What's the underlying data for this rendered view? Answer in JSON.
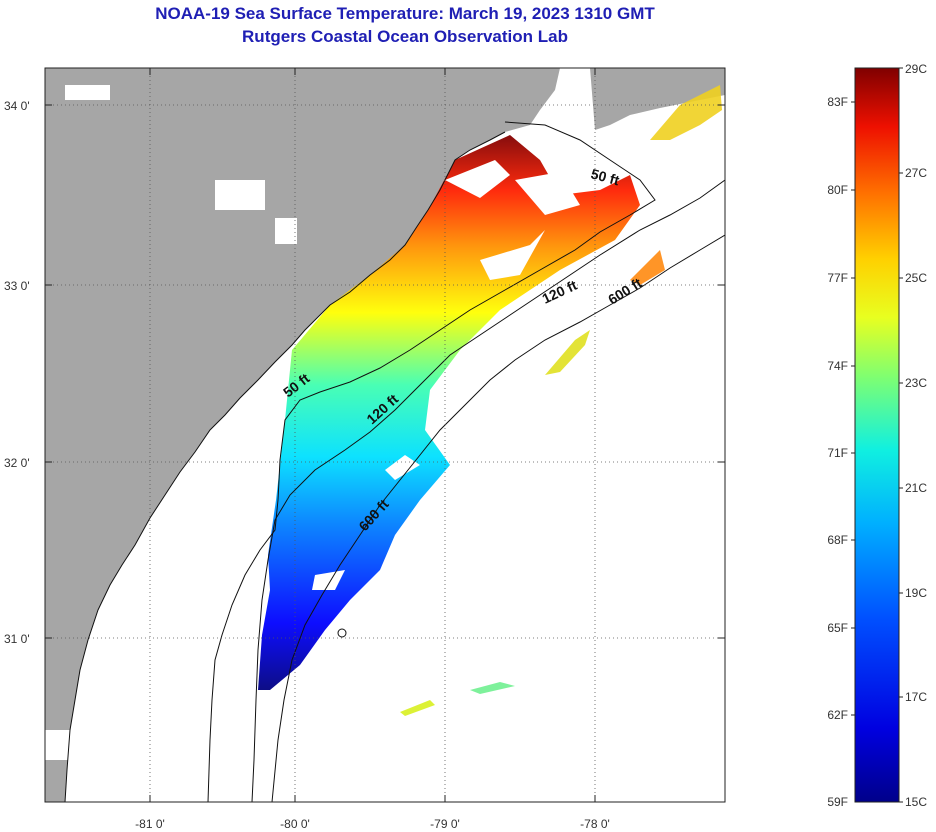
{
  "title_line1": "NOAA-19 Sea Surface Temperature:  March 19, 2023 1310 GMT",
  "title_line2": "Rutgers Coastal Ocean Observation Lab",
  "colors": {
    "land": "#a6a6a6",
    "title": "#1f1fb4"
  },
  "latitude_ticks": [
    {
      "value": 34,
      "label": "34 0'"
    },
    {
      "value": 33,
      "label": "33 0'"
    },
    {
      "value": 32,
      "label": "32 0'"
    },
    {
      "value": 31,
      "label": "31 0'"
    }
  ],
  "longitude_ticks": [
    {
      "value": -81,
      "label": "-81 0'"
    },
    {
      "value": -80,
      "label": "-80 0'"
    },
    {
      "value": -79,
      "label": "-79 0'"
    },
    {
      "value": -78,
      "label": "-78 0'"
    }
  ],
  "contour_labels": [
    {
      "label": "50 ft"
    },
    {
      "label": "50 ft"
    },
    {
      "label": "120 ft"
    },
    {
      "label": "120 ft"
    },
    {
      "label": "600 ft"
    },
    {
      "label": "600 ft"
    }
  ],
  "colorbar": {
    "fahrenheit_labels": [
      "83F",
      "80F",
      "77F",
      "74F",
      "71F",
      "68F",
      "65F",
      "62F",
      "59F"
    ],
    "celsius_labels": [
      "29C",
      "27C",
      "25C",
      "23C",
      "21C",
      "19C",
      "17C",
      "15C"
    ]
  }
}
